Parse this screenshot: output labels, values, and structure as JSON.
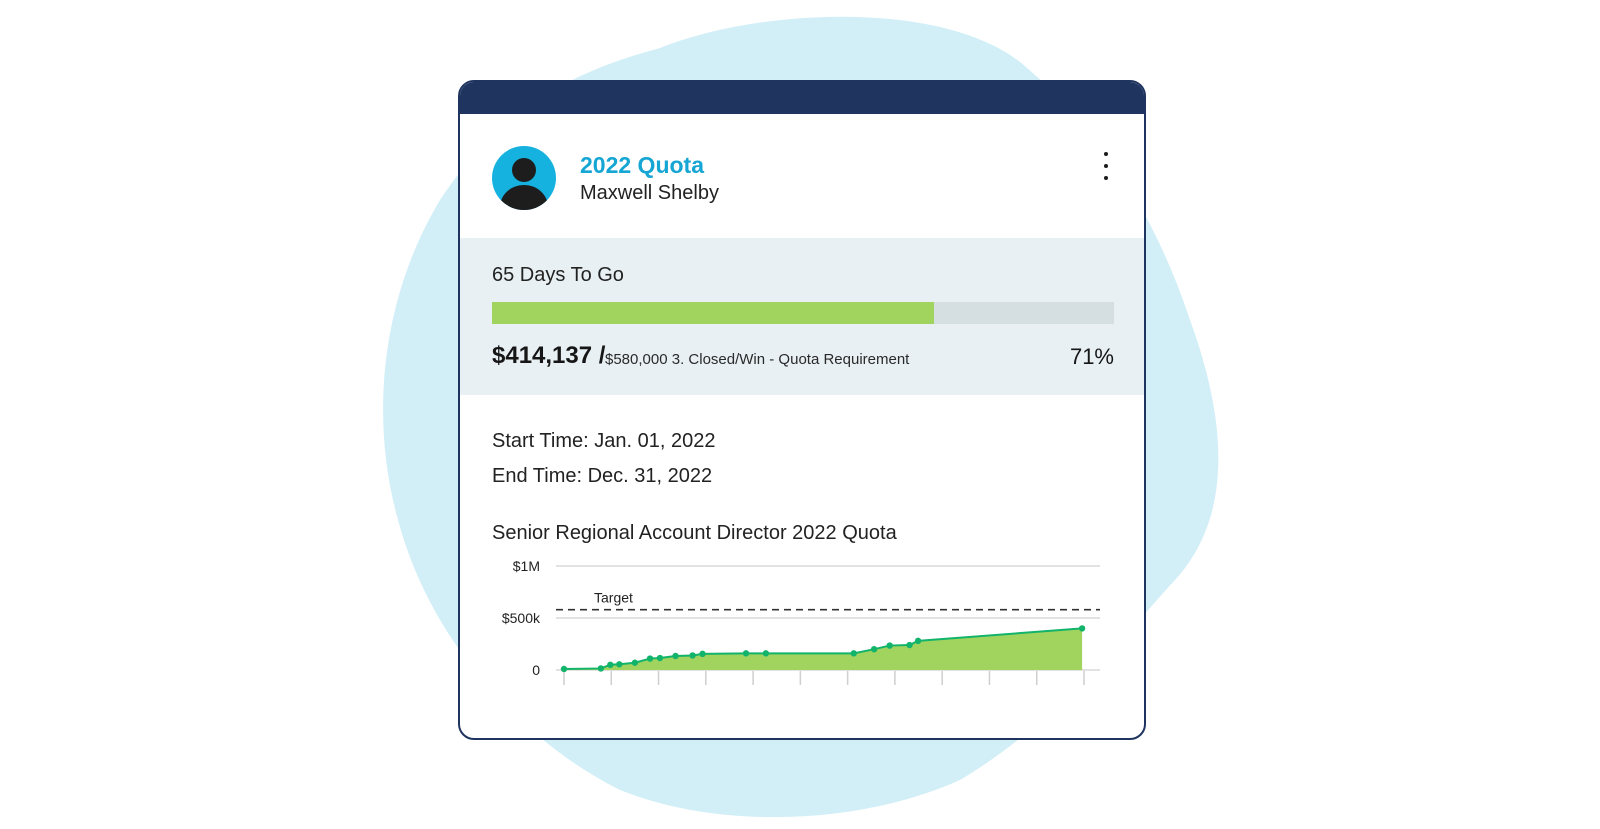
{
  "card": {
    "title": "2022 Quota",
    "subtitle": "Maxwell Shelby",
    "avatar_icon": "user-avatar-icon",
    "menu_icon": "kebab-menu-icon"
  },
  "progress": {
    "days_left": "65 Days To Go",
    "amount": "$414,137 /",
    "requirement": "$580,000 3. Closed/Win - Quota Requirement",
    "percent": "71%",
    "fraction": 0.71
  },
  "period": {
    "start": "Start Time: Jan. 01, 2022",
    "end": "End Time: Dec. 31, 2022"
  },
  "chart_data": {
    "type": "area",
    "title": "Senior Regional Account Director 2022 Quota",
    "y_ticks": [
      "$1M",
      "$500k",
      "0"
    ],
    "ylim": [
      0,
      1000000
    ],
    "target": {
      "label": "Target",
      "value": 580000
    },
    "series": [
      {
        "x": [
          0.0,
          0.78,
          0.98,
          1.17,
          1.5,
          1.82,
          2.03,
          2.36,
          2.72,
          2.93,
          3.85,
          4.27,
          6.13,
          6.56,
          6.89,
          7.31,
          7.49,
          10.96
        ],
        "values": [
          10000,
          15000,
          50000,
          55000,
          70000,
          110000,
          115000,
          135000,
          140000,
          155000,
          160000,
          160000,
          160000,
          200000,
          235000,
          240000,
          280000,
          400000
        ]
      }
    ],
    "x_ticks": 12,
    "grid": true,
    "colors": {
      "fill": "#a1d35f",
      "line": "#12b36a",
      "target": "#333333"
    }
  },
  "colors": {
    "accent": "#15a6d4",
    "navy": "#1f3560",
    "progress": "#a1d35f",
    "panel": "#e8f0f3",
    "blob": "#d2eff8"
  }
}
